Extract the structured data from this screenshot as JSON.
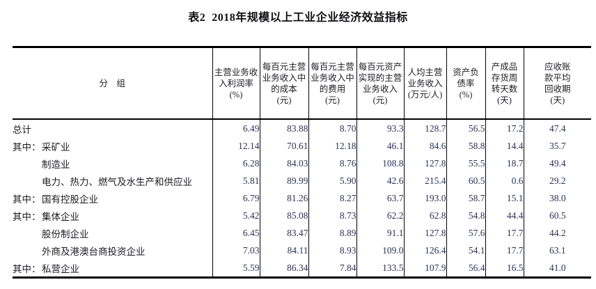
{
  "title": "表2  2018年规模以上工业企业经济效益指标",
  "colors": {
    "background": "#ffffff",
    "border": "#000000",
    "label_text": "#1c1c22",
    "number_text": "#2a3258"
  },
  "table": {
    "group_header": "分　组",
    "column_headers": [
      "主营业务收\n入利润率\n(%)",
      "每百元主营\n业务收入中\n的成本\n(元)",
      "每百元主营\n业务收入中\n的费用\n(元)",
      "每百元资产\n实现的主营\n业务收入\n(元)",
      "人均主营\n业务收入\n(万元/人)",
      "资产负\n债率\n(%)",
      "产成品\n存货周\n转天数\n(天)",
      "应收账\n款平均\n回收期\n(天)"
    ],
    "rows": [
      {
        "prefix": "",
        "label": "总计",
        "indent": false,
        "values": [
          "6.49",
          "83.88",
          "8.70",
          "93.3",
          "128.7",
          "56.5",
          "17.2",
          "47.4"
        ]
      },
      {
        "prefix": "其中：",
        "label": "采矿业",
        "indent": true,
        "values": [
          "12.14",
          "70.61",
          "12.18",
          "46.1",
          "84.6",
          "58.8",
          "14.4",
          "35.7"
        ]
      },
      {
        "prefix": "",
        "label": "制造业",
        "indent": true,
        "values": [
          "6.28",
          "84.03",
          "8.76",
          "108.8",
          "127.8",
          "55.5",
          "18.7",
          "49.4"
        ]
      },
      {
        "prefix": "",
        "label": "电力、热力、燃气及水生产和供应业",
        "indent": true,
        "values": [
          "5.81",
          "89.99",
          "5.90",
          "42.6",
          "215.4",
          "60.5",
          "0.6",
          "29.2"
        ]
      },
      {
        "prefix": "其中：",
        "label": "国有控股企业",
        "indent": true,
        "values": [
          "6.79",
          "81.26",
          "8.27",
          "63.7",
          "193.0",
          "58.7",
          "15.1",
          "38.0"
        ]
      },
      {
        "prefix": "其中：",
        "label": "集体企业",
        "indent": true,
        "values": [
          "5.42",
          "85.08",
          "8.73",
          "62.2",
          "62.8",
          "54.8",
          "44.4",
          "60.5"
        ]
      },
      {
        "prefix": "",
        "label": "股份制企业",
        "indent": true,
        "values": [
          "6.45",
          "83.47",
          "8.89",
          "91.1",
          "127.8",
          "57.6",
          "17.7",
          "44.2"
        ]
      },
      {
        "prefix": "",
        "label": "外商及港澳台商投资企业",
        "indent": true,
        "values": [
          "7.03",
          "84.11",
          "8.93",
          "109.0",
          "126.4",
          "54.1",
          "17.7",
          "63.1"
        ]
      },
      {
        "prefix": "其中：",
        "label": "私营企业",
        "indent": true,
        "values": [
          "5.59",
          "86.34",
          "7.84",
          "133.5",
          "107.9",
          "56.4",
          "16.5",
          "41.0"
        ]
      }
    ]
  },
  "chart_data": {
    "type": "table",
    "title": "表2 2018年规模以上工业企业经济效益指标",
    "columns": [
      "分组",
      "主营业务收入利润率(%)",
      "每百元主营业务收入中的成本(元)",
      "每百元主营业务收入中的费用(元)",
      "每百元资产实现的主营业务收入(元)",
      "人均主营业务收入(万元/人)",
      "资产负债率(%)",
      "产成品存货周转天数(天)",
      "应收账款平均回收期(天)"
    ],
    "rows": [
      [
        "总计",
        6.49,
        83.88,
        8.7,
        93.3,
        128.7,
        56.5,
        17.2,
        47.4
      ],
      [
        "其中：采矿业",
        12.14,
        70.61,
        12.18,
        46.1,
        84.6,
        58.8,
        14.4,
        35.7
      ],
      [
        "制造业",
        6.28,
        84.03,
        8.76,
        108.8,
        127.8,
        55.5,
        18.7,
        49.4
      ],
      [
        "电力、热力、燃气及水生产和供应业",
        5.81,
        89.99,
        5.9,
        42.6,
        215.4,
        60.5,
        0.6,
        29.2
      ],
      [
        "其中：国有控股企业",
        6.79,
        81.26,
        8.27,
        63.7,
        193.0,
        58.7,
        15.1,
        38.0
      ],
      [
        "其中：集体企业",
        5.42,
        85.08,
        8.73,
        62.2,
        62.8,
        54.8,
        44.4,
        60.5
      ],
      [
        "股份制企业",
        6.45,
        83.47,
        8.89,
        91.1,
        127.8,
        57.6,
        17.7,
        44.2
      ],
      [
        "外商及港澳台商投资企业",
        7.03,
        84.11,
        8.93,
        109.0,
        126.4,
        54.1,
        17.7,
        63.1
      ],
      [
        "其中：私营企业",
        5.59,
        86.34,
        7.84,
        133.5,
        107.9,
        56.4,
        16.5,
        41.0
      ]
    ]
  }
}
